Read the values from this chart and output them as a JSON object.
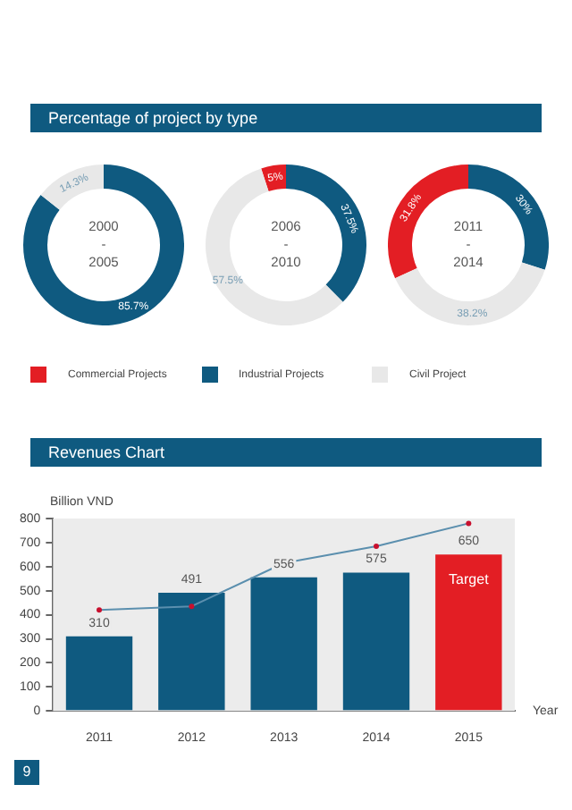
{
  "chart_data": [
    {
      "type": "donut",
      "title": "Percentage of project by type",
      "annotations": [
        "2000\n-\n2005"
      ],
      "categories": [
        "Commercial Projects",
        "Industrial Projects",
        "Civil Project"
      ],
      "values": [
        0,
        85.7,
        14.3
      ],
      "colors": [
        "#e31e24",
        "#0f5a80",
        "#e8e8e8"
      ],
      "value_labels": [
        null,
        "85.7%",
        "14.3%"
      ],
      "legend": "bottom"
    },
    {
      "type": "donut",
      "annotations": [
        "2006\n-\n2010"
      ],
      "categories": [
        null,
        null,
        null
      ],
      "values": [
        5,
        37.5,
        57.5
      ],
      "colors": [
        "#e31e24",
        "#0f5a80",
        "#e8e8e8"
      ],
      "value_labels": [
        "5%",
        "37.5%",
        "57.5%"
      ]
    },
    {
      "type": "donut",
      "annotations": [
        "2011\n-\n2014"
      ],
      "categories": [
        null,
        null,
        null
      ],
      "values": [
        31.8,
        30,
        38.2
      ],
      "colors": [
        "#e31e24",
        "#0f5a80",
        "#e8e8e8"
      ],
      "value_labels": [
        "31.8%",
        "30%",
        "38.2%"
      ]
    },
    {
      "type": "bar",
      "title": "Revenues Chart",
      "ylabel": "Billion VND",
      "xlabel": "Year",
      "categories": [
        "2011",
        "2012",
        "2013",
        "2014",
        "2015"
      ],
      "ylim": [
        0,
        800
      ],
      "yticks": [
        0,
        100,
        200,
        300,
        400,
        500,
        600,
        700,
        800
      ],
      "series": [
        {
          "type": "bar",
          "values": [
            310,
            491,
            556,
            575,
            650
          ],
          "colors": [
            "#0f5a80",
            "#0f5a80",
            "#0f5a80",
            "#0f5a80",
            "#e31e24"
          ],
          "value_labels": [
            "310",
            "491",
            "556",
            "575",
            "650"
          ]
        },
        {
          "type": "line",
          "color": "#5b8fae",
          "values": [
            420,
            435,
            615,
            685,
            780
          ],
          "marker": "circle"
        }
      ],
      "annotations": [
        "Target",
        "9"
      ]
    }
  ]
}
